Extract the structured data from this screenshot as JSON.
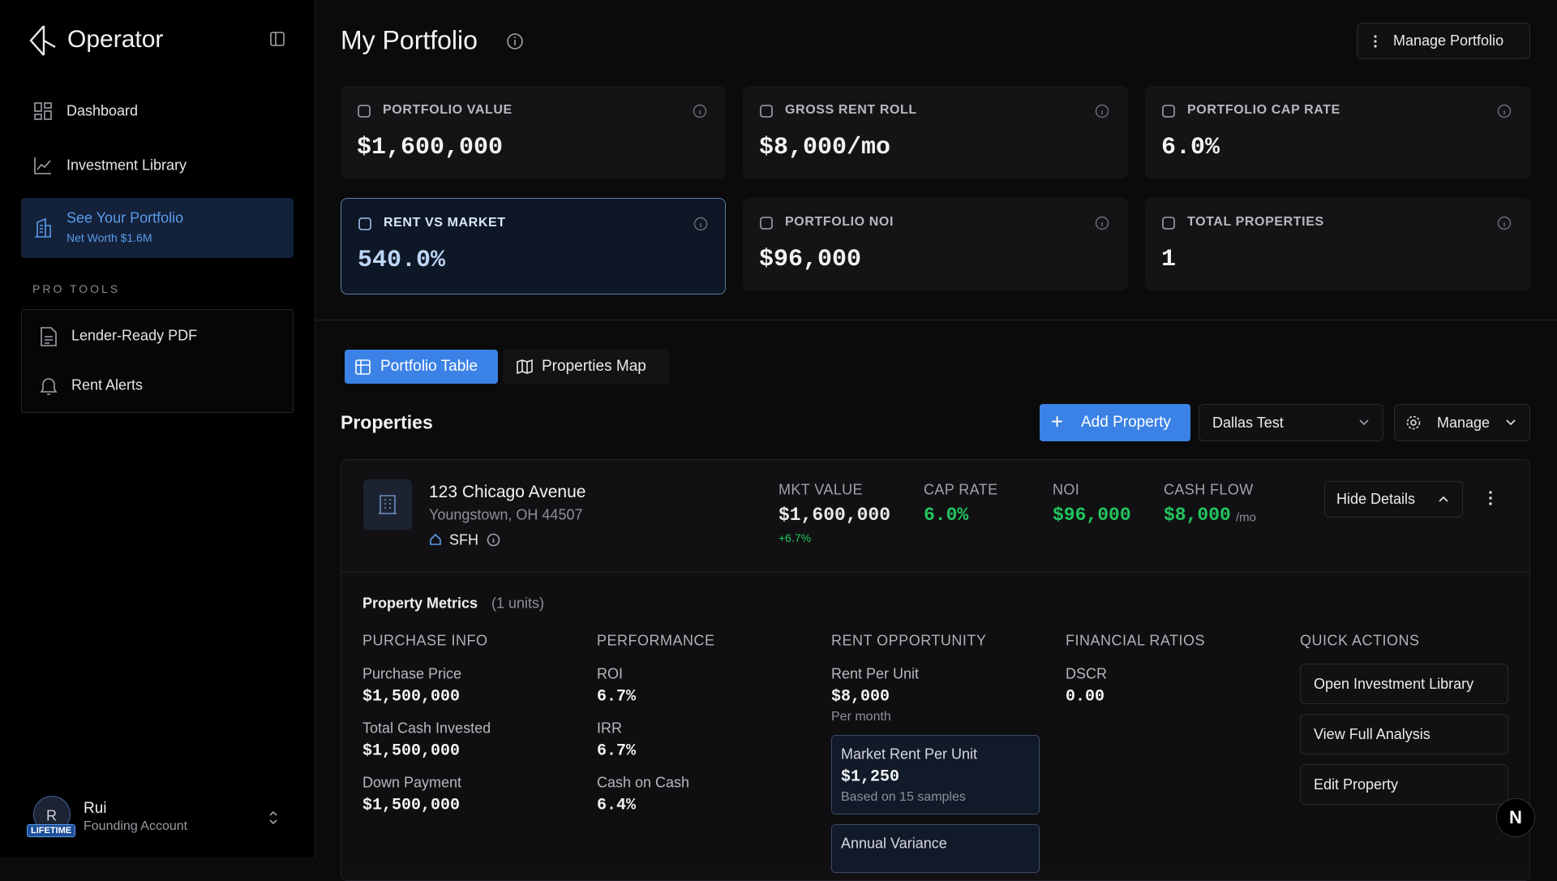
{
  "sidebar": {
    "brand": "Operator",
    "nav": [
      "Dashboard",
      "Investment Library"
    ],
    "active": {
      "title": "See Your Portfolio",
      "subtitle": "Net Worth $1.6M"
    },
    "section": "PRO TOOLS",
    "tools": [
      "Lender-Ready PDF",
      "Rent Alerts"
    ],
    "user": {
      "initial": "R",
      "badge": "LIFETIME",
      "name": "Rui",
      "role": "Founding Account"
    }
  },
  "header": {
    "title": "My Portfolio",
    "button": "Manage Portfolio"
  },
  "stats": [
    {
      "label": "PORTFOLIO VALUE",
      "value": "$1,600,000"
    },
    {
      "label": "GROSS RENT ROLL",
      "value": "$8,000/mo"
    },
    {
      "label": "PORTFOLIO CAP RATE",
      "value": "6.0%"
    },
    {
      "label": "RENT VS MARKET",
      "value": "540.0%"
    },
    {
      "label": "PORTFOLIO NOI",
      "value": "$96,000"
    },
    {
      "label": "TOTAL PROPERTIES",
      "value": "1"
    }
  ],
  "tabs": [
    "Portfolio Table",
    "Properties Map"
  ],
  "properties": {
    "title": "Properties",
    "add": "Add Property",
    "filter": "Dallas Test",
    "manage": "Manage"
  },
  "property": {
    "name": "123 Chicago Avenue",
    "address": "Youngstown, OH 44507",
    "kind": "SFH",
    "metrics": [
      {
        "label": "MKT VALUE",
        "value": "$1,600,000",
        "sub": "+6.7%"
      },
      {
        "label": "CAP RATE",
        "value": "6.0%"
      },
      {
        "label": "NOI",
        "value": "$96,000"
      },
      {
        "label": "CASH FLOW",
        "value": "$8,000",
        "sub": "/mo"
      }
    ],
    "toggle": "Hide Details"
  },
  "details": {
    "heading": "Property Metrics",
    "count": "(1 units)",
    "purchase": {
      "title": "PURCHASE INFO",
      "items": [
        {
          "label": "Purchase Price",
          "value": "$1,500,000"
        },
        {
          "label": "Total Cash Invested",
          "value": "$1,500,000"
        },
        {
          "label": "Down Payment",
          "value": "$1,500,000"
        }
      ]
    },
    "performance": {
      "title": "PERFORMANCE",
      "items": [
        {
          "label": "ROI",
          "value": "6.7%"
        },
        {
          "label": "IRR",
          "value": "6.7%"
        },
        {
          "label": "Cash on Cash",
          "value": "6.4%"
        }
      ]
    },
    "rent": {
      "title": "RENT OPPORTUNITY",
      "label": "Rent Per Unit",
      "value": "$8,000",
      "note": "Per month",
      "market": {
        "label": "Market Rent Per Unit",
        "value": "$1,250",
        "note": "Based on 15 samples"
      },
      "variance": {
        "label": "Annual Variance"
      }
    },
    "ratios": {
      "title": "FINANCIAL RATIOS",
      "label": "DSCR",
      "value": "0.00"
    },
    "actions": {
      "title": "QUICK ACTIONS",
      "buttons": [
        "Open Investment Library",
        "View Full Analysis",
        "Edit Property"
      ]
    }
  },
  "badge": "N"
}
